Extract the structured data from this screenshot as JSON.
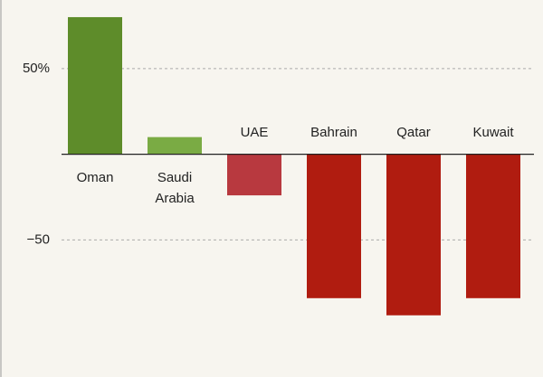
{
  "chart_data": {
    "type": "bar",
    "categories": [
      "Oman",
      "Saudi Arabia",
      "UAE",
      "Bahrain",
      "Qatar",
      "Kuwait"
    ],
    "values": [
      80,
      10,
      -24,
      -84,
      -94,
      -84
    ],
    "colors": [
      "#5e8c2a",
      "#7aab44",
      "#b8393f",
      "#b01c10",
      "#b01c10",
      "#b01c10"
    ],
    "ylim": [
      -130,
      90
    ],
    "yticks": [
      {
        "value": 50,
        "label": "50%"
      },
      {
        "value": -50,
        "label": "−50"
      }
    ],
    "grid": true
  }
}
